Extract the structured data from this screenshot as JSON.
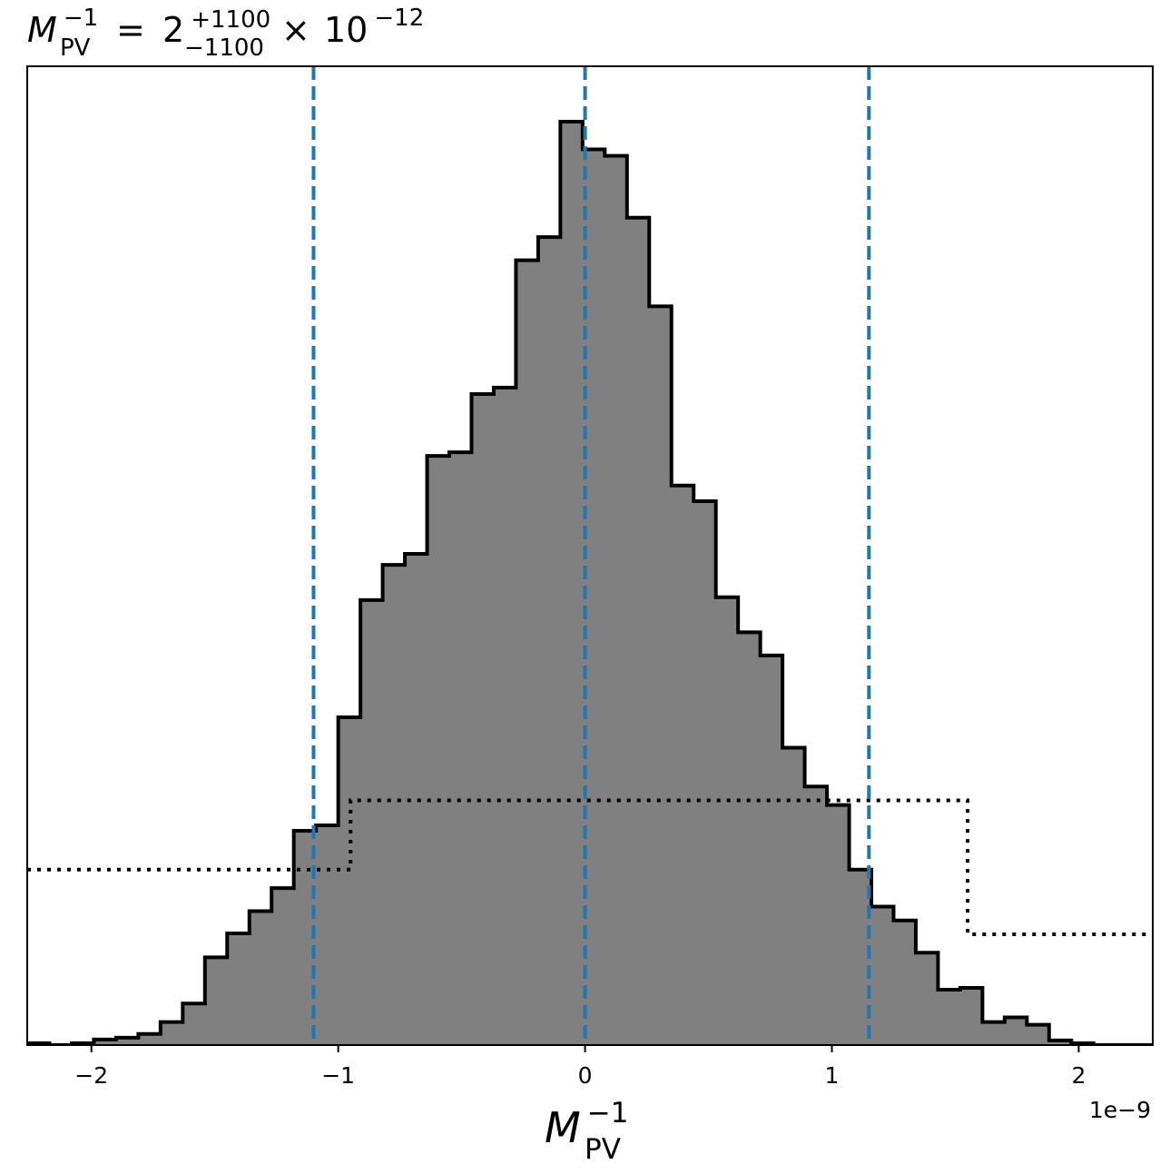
{
  "chart_data": {
    "type": "histogram",
    "title": {
      "lhs_symbol": "M",
      "lhs_sub": "PV",
      "lhs_sup": "−1",
      "equals": "=",
      "value": "2",
      "upper": "+1100",
      "lower": "−1100",
      "times": "×",
      "base": "10",
      "exponent": "−12"
    },
    "xlabel": {
      "symbol": "M",
      "sub": "PV",
      "sup": "−1"
    },
    "offset_text": "1e−9",
    "x_scale": 1e-09,
    "xlim": [
      -2.26,
      2.3
    ],
    "ylim": [
      0,
      1.06
    ],
    "x_ticks": [
      {
        "value": -2,
        "label": "−2"
      },
      {
        "value": -1,
        "label": "−1"
      },
      {
        "value": 0,
        "label": "0"
      },
      {
        "value": 1,
        "label": "1"
      },
      {
        "value": 2,
        "label": "2"
      }
    ],
    "y_ticks_visible": false,
    "bin_edges": [
      -2.26,
      -2.17,
      -2.08,
      -1.99,
      -1.9,
      -1.81,
      -1.72,
      -1.63,
      -1.54,
      -1.45,
      -1.36,
      -1.27,
      -1.18,
      -1.09,
      -1.0,
      -0.91,
      -0.82,
      -0.73,
      -0.64,
      -0.55,
      -0.46,
      -0.37,
      -0.28,
      -0.19,
      -0.1,
      -0.01,
      0.08,
      0.17,
      0.26,
      0.35,
      0.44,
      0.53,
      0.62,
      0.71,
      0.8,
      0.89,
      0.98,
      1.07,
      1.16,
      1.25,
      1.34,
      1.43,
      1.52,
      1.61,
      1.7,
      1.79,
      1.88,
      1.97,
      2.06,
      2.15,
      2.24,
      2.3
    ],
    "counts": [
      0.002,
      0.0,
      0.002,
      0.006,
      0.008,
      0.012,
      0.025,
      0.045,
      0.095,
      0.121,
      0.145,
      0.17,
      0.232,
      0.238,
      0.355,
      0.482,
      0.52,
      0.532,
      0.638,
      0.642,
      0.705,
      0.712,
      0.85,
      0.875,
      1.0,
      0.97,
      0.963,
      0.896,
      0.8,
      0.606,
      0.589,
      0.485,
      0.447,
      0.422,
      0.322,
      0.28,
      0.26,
      0.19,
      0.15,
      0.135,
      0.1,
      0.06,
      0.062,
      0.025,
      0.03,
      0.022,
      0.005,
      0.002,
      0.0,
      0.0,
      0.0
    ],
    "prior": {
      "style": "dotted",
      "steps": [
        {
          "x0": -2.26,
          "x1": -0.95,
          "y": 0.19
        },
        {
          "x0": -0.95,
          "x1": 1.55,
          "y": 0.265
        },
        {
          "x0": 1.55,
          "x1": 2.3,
          "y": 0.12
        }
      ]
    },
    "vlines": [
      {
        "x": -1.1,
        "role": "lower"
      },
      {
        "x": 0.0,
        "role": "median"
      },
      {
        "x": 1.15,
        "role": "upper"
      }
    ],
    "colors": {
      "fill": "#808080",
      "edge": "#000000",
      "vline": "#1f77b4",
      "prior": "#000000"
    },
    "grid": false,
    "legend": "none"
  }
}
